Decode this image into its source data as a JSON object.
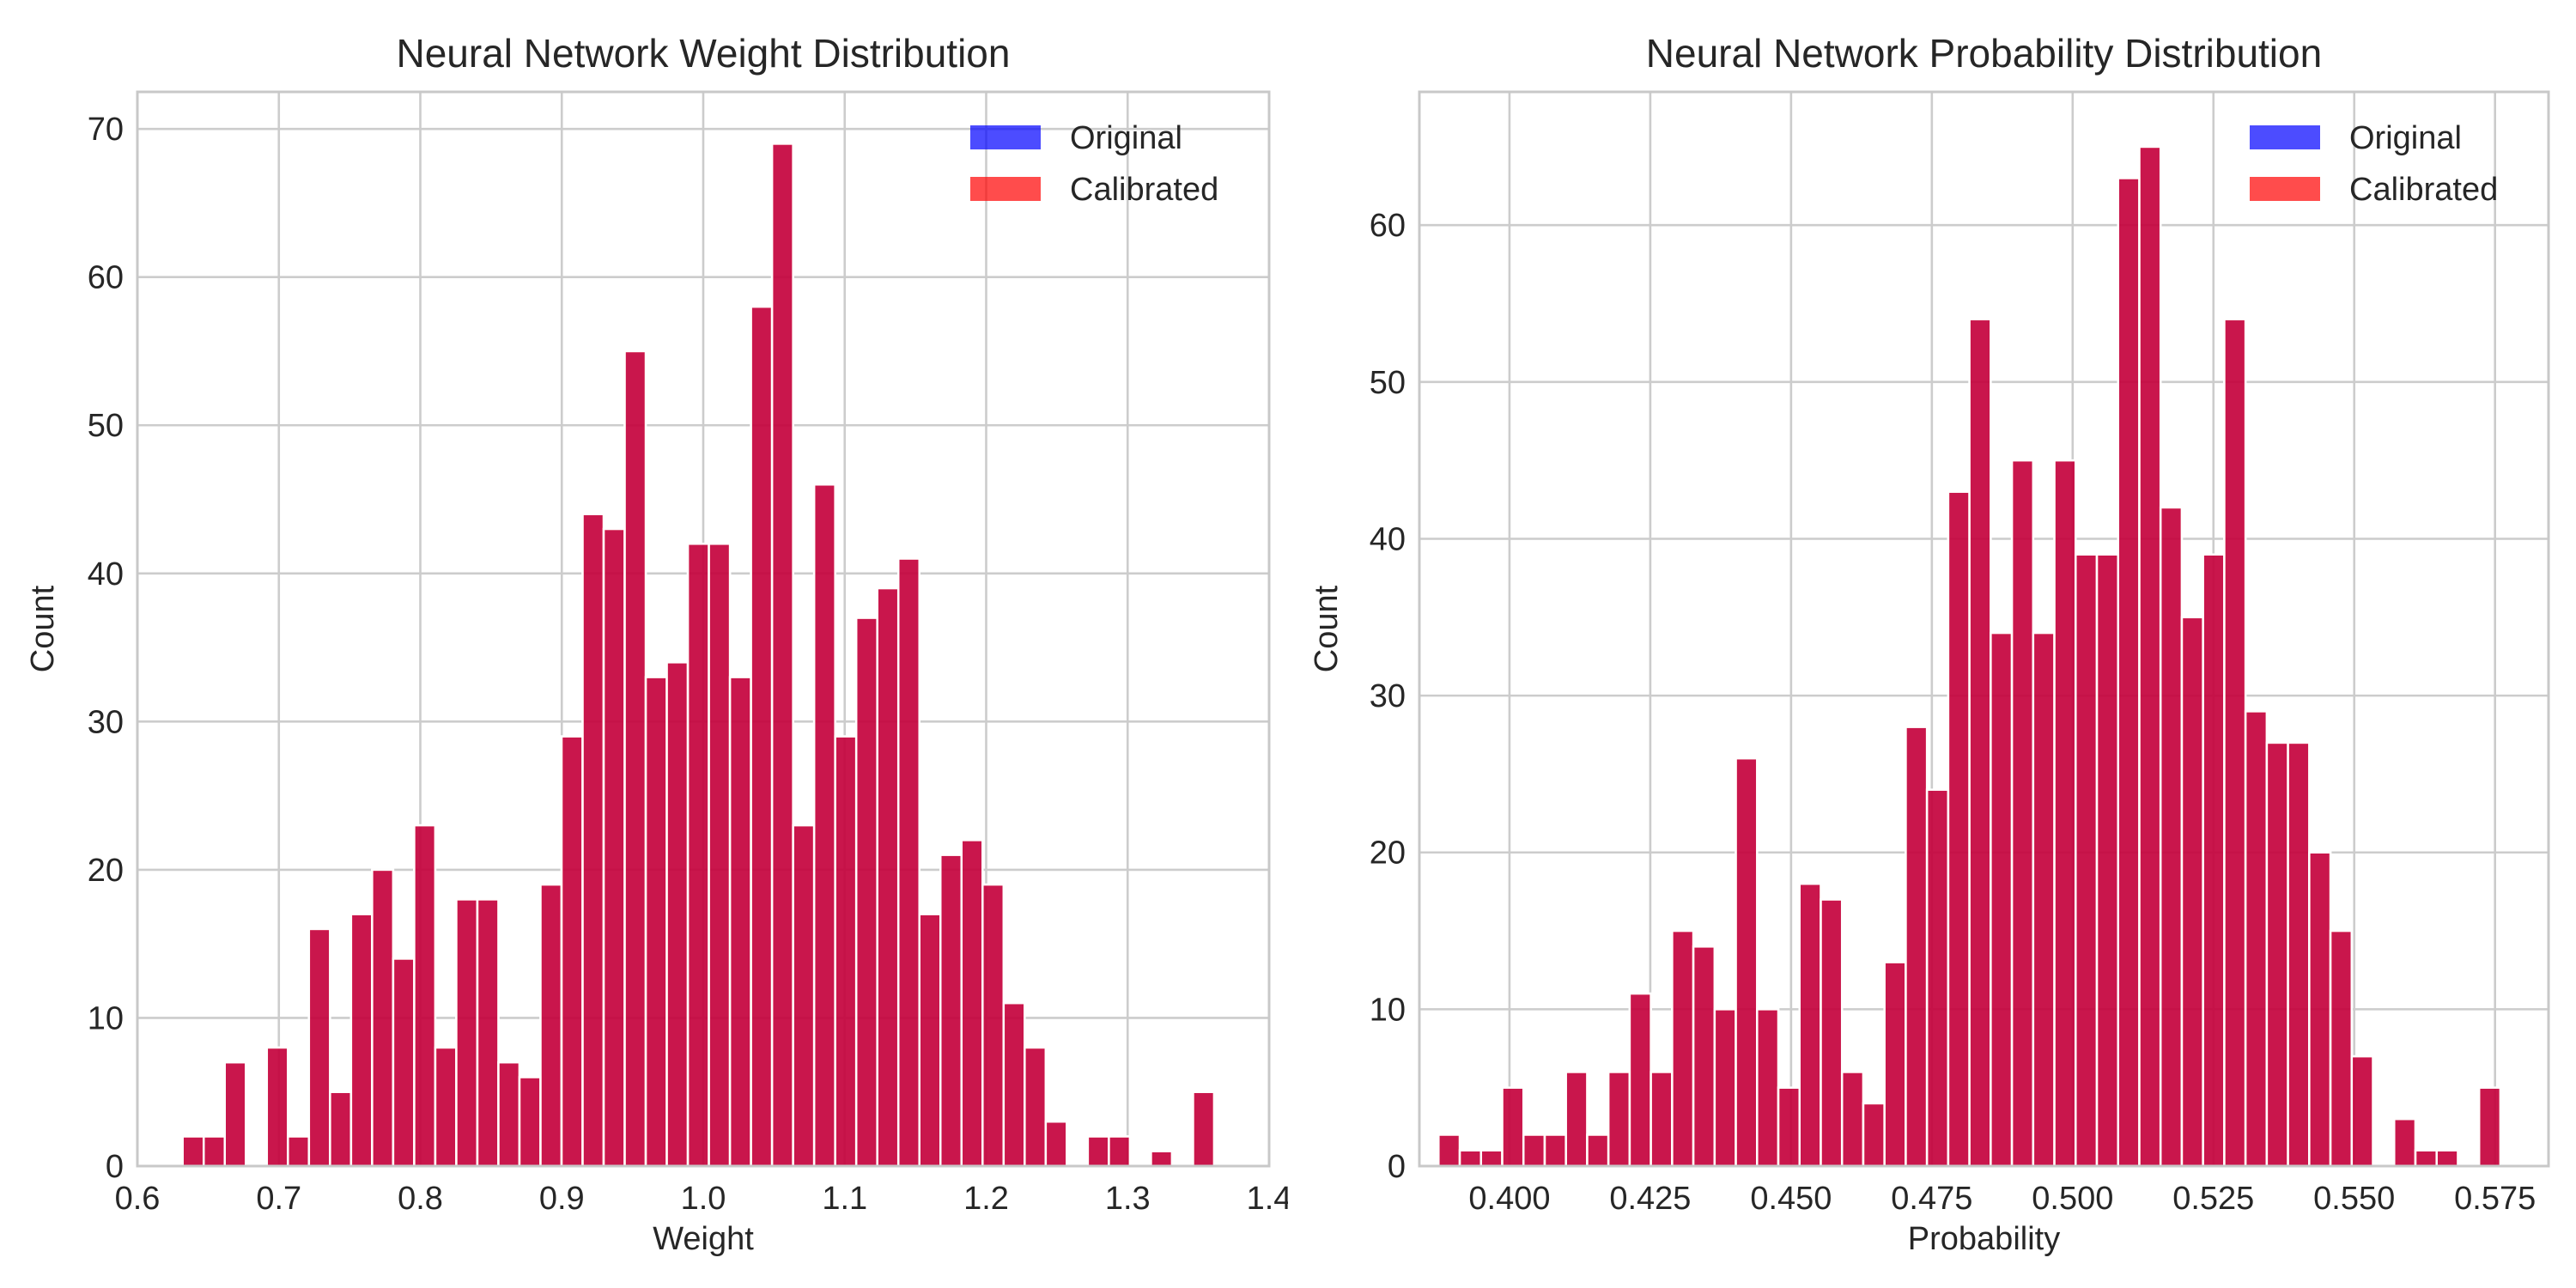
{
  "chart_data": [
    {
      "type": "bar",
      "title": "Neural Network Weight Distribution",
      "xlabel": "Weight",
      "ylabel": "Count",
      "xlim": [
        0.6,
        1.4
      ],
      "ylim": [
        0,
        72.5
      ],
      "xticks": [
        "0.6",
        "0.7",
        "0.8",
        "0.9",
        "1.0",
        "1.1",
        "1.2",
        "1.3",
        "1.4"
      ],
      "yticks": [
        "0",
        "10",
        "20",
        "30",
        "40",
        "50",
        "60",
        "70"
      ],
      "grid": true,
      "legend_position": "top-right",
      "bin_start": 0.632,
      "bin_width": 0.01488,
      "series": [
        {
          "name": "Original",
          "color": "#0000ff",
          "values": [
            2,
            2,
            7,
            0,
            8,
            2,
            16,
            5,
            17,
            20,
            14,
            23,
            8,
            18,
            18,
            7,
            6,
            19,
            29,
            44,
            43,
            55,
            33,
            34,
            42,
            42,
            33,
            58,
            69,
            23,
            46,
            29,
            37,
            39,
            41,
            17,
            21,
            22,
            19,
            11,
            8,
            3,
            0,
            2,
            2,
            0,
            1,
            0,
            5
          ]
        },
        {
          "name": "Calibrated",
          "color": "#ff0000",
          "values": [
            2,
            2,
            7,
            0,
            8,
            2,
            16,
            5,
            17,
            20,
            14,
            23,
            8,
            18,
            18,
            7,
            6,
            19,
            29,
            44,
            43,
            55,
            33,
            34,
            42,
            42,
            33,
            58,
            69,
            23,
            46,
            29,
            37,
            39,
            41,
            17,
            21,
            22,
            19,
            11,
            8,
            3,
            0,
            2,
            2,
            0,
            1,
            0,
            5
          ]
        }
      ],
      "overlap_color": "#cc1850"
    },
    {
      "type": "bar",
      "title": "Neural Network Probability Distribution",
      "xlabel": "Probability",
      "ylabel": "Count",
      "xlim": [
        0.384,
        0.5845
      ],
      "ylim": [
        0,
        68.5
      ],
      "xticks": [
        "0.400",
        "0.425",
        "0.450",
        "0.475",
        "0.500",
        "0.525",
        "0.550",
        "0.575"
      ],
      "yticks": [
        "0",
        "10",
        "20",
        "30",
        "40",
        "50",
        "60"
      ],
      "grid": true,
      "legend_position": "top-right",
      "bin_start": 0.3874,
      "bin_width": 0.003771,
      "series": [
        {
          "name": "Original",
          "color": "#0000ff",
          "values": [
            2,
            1,
            1,
            5,
            2,
            2,
            6,
            2,
            6,
            11,
            6,
            15,
            14,
            10,
            26,
            10,
            5,
            18,
            17,
            6,
            4,
            13,
            28,
            24,
            43,
            54,
            34,
            45,
            34,
            45,
            39,
            39,
            63,
            65,
            42,
            35,
            39,
            54,
            29,
            27,
            27,
            20,
            15,
            7,
            0,
            3,
            1,
            1,
            0,
            5
          ]
        },
        {
          "name": "Calibrated",
          "color": "#ff0000",
          "values": [
            2,
            1,
            1,
            5,
            2,
            2,
            6,
            2,
            6,
            11,
            6,
            15,
            14,
            10,
            26,
            10,
            5,
            18,
            17,
            6,
            4,
            13,
            28,
            24,
            43,
            54,
            34,
            45,
            34,
            45,
            39,
            39,
            63,
            65,
            42,
            35,
            39,
            54,
            29,
            27,
            27,
            20,
            15,
            7,
            0,
            3,
            1,
            1,
            0,
            5
          ]
        }
      ],
      "overlap_color": "#cc1850"
    }
  ]
}
